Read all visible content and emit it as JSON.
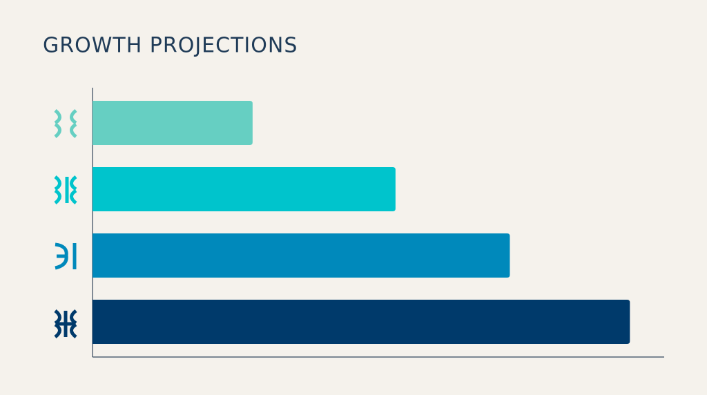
{
  "chart_data": {
    "type": "bar",
    "orientation": "horizontal",
    "title": "GROWTH PROJECTIONS",
    "values": [
      28,
      53,
      73,
      94
    ],
    "colors": [
      "#66cfc2",
      "#00c4cc",
      "#0089bb",
      "#003a6b"
    ],
    "xlim": [
      0,
      100
    ]
  }
}
